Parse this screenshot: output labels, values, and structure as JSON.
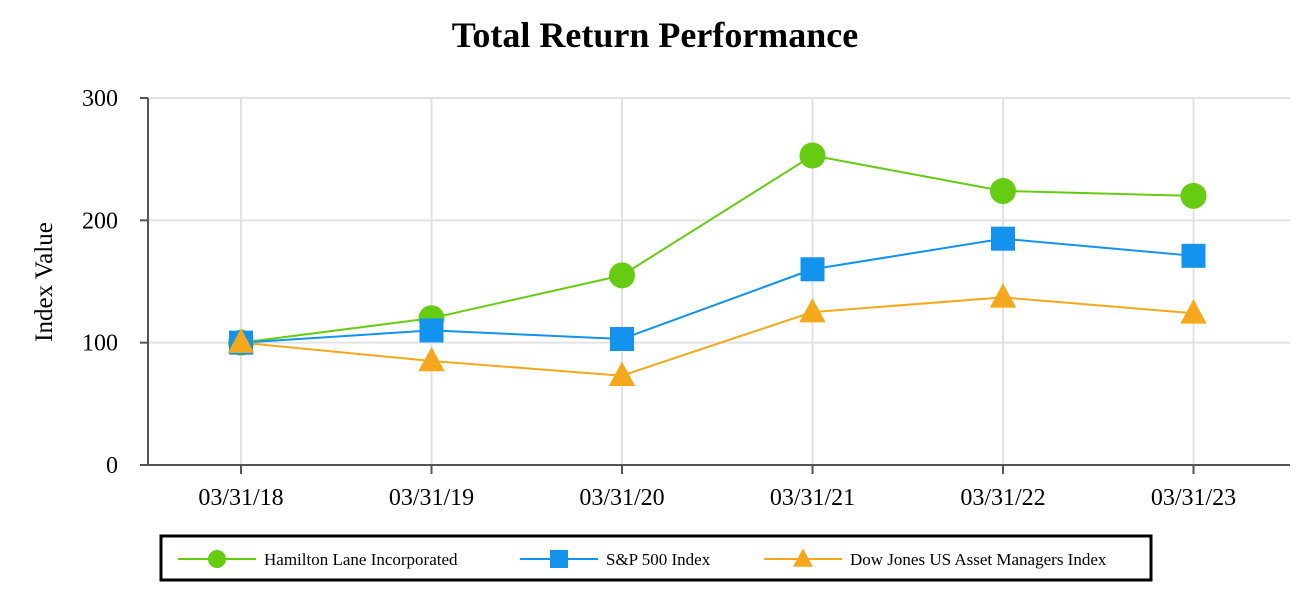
{
  "chart_data": {
    "type": "line",
    "title": "Total Return Performance",
    "xlabel": "",
    "ylabel": "Index Value",
    "categories": [
      "03/31/18",
      "03/31/19",
      "03/31/20",
      "03/31/21",
      "03/31/22",
      "03/31/23"
    ],
    "ylim": [
      0,
      300
    ],
    "yticks": [
      0,
      100,
      200,
      300
    ],
    "grid": true,
    "legend_position": "bottom",
    "series": [
      {
        "name": "Hamilton Lane Incorporated",
        "marker": "circle",
        "color": "#66cc11",
        "values": [
          100,
          120,
          155,
          253,
          224,
          220
        ]
      },
      {
        "name": "S&P 500 Index",
        "marker": "square",
        "color": "#1393ee",
        "values": [
          100,
          110,
          103,
          160,
          185,
          171
        ]
      },
      {
        "name": "Dow Jones US Asset Managers Index",
        "marker": "triangle",
        "color": "#f5a81c",
        "values": [
          100,
          85,
          73,
          125,
          137,
          124
        ]
      }
    ]
  }
}
